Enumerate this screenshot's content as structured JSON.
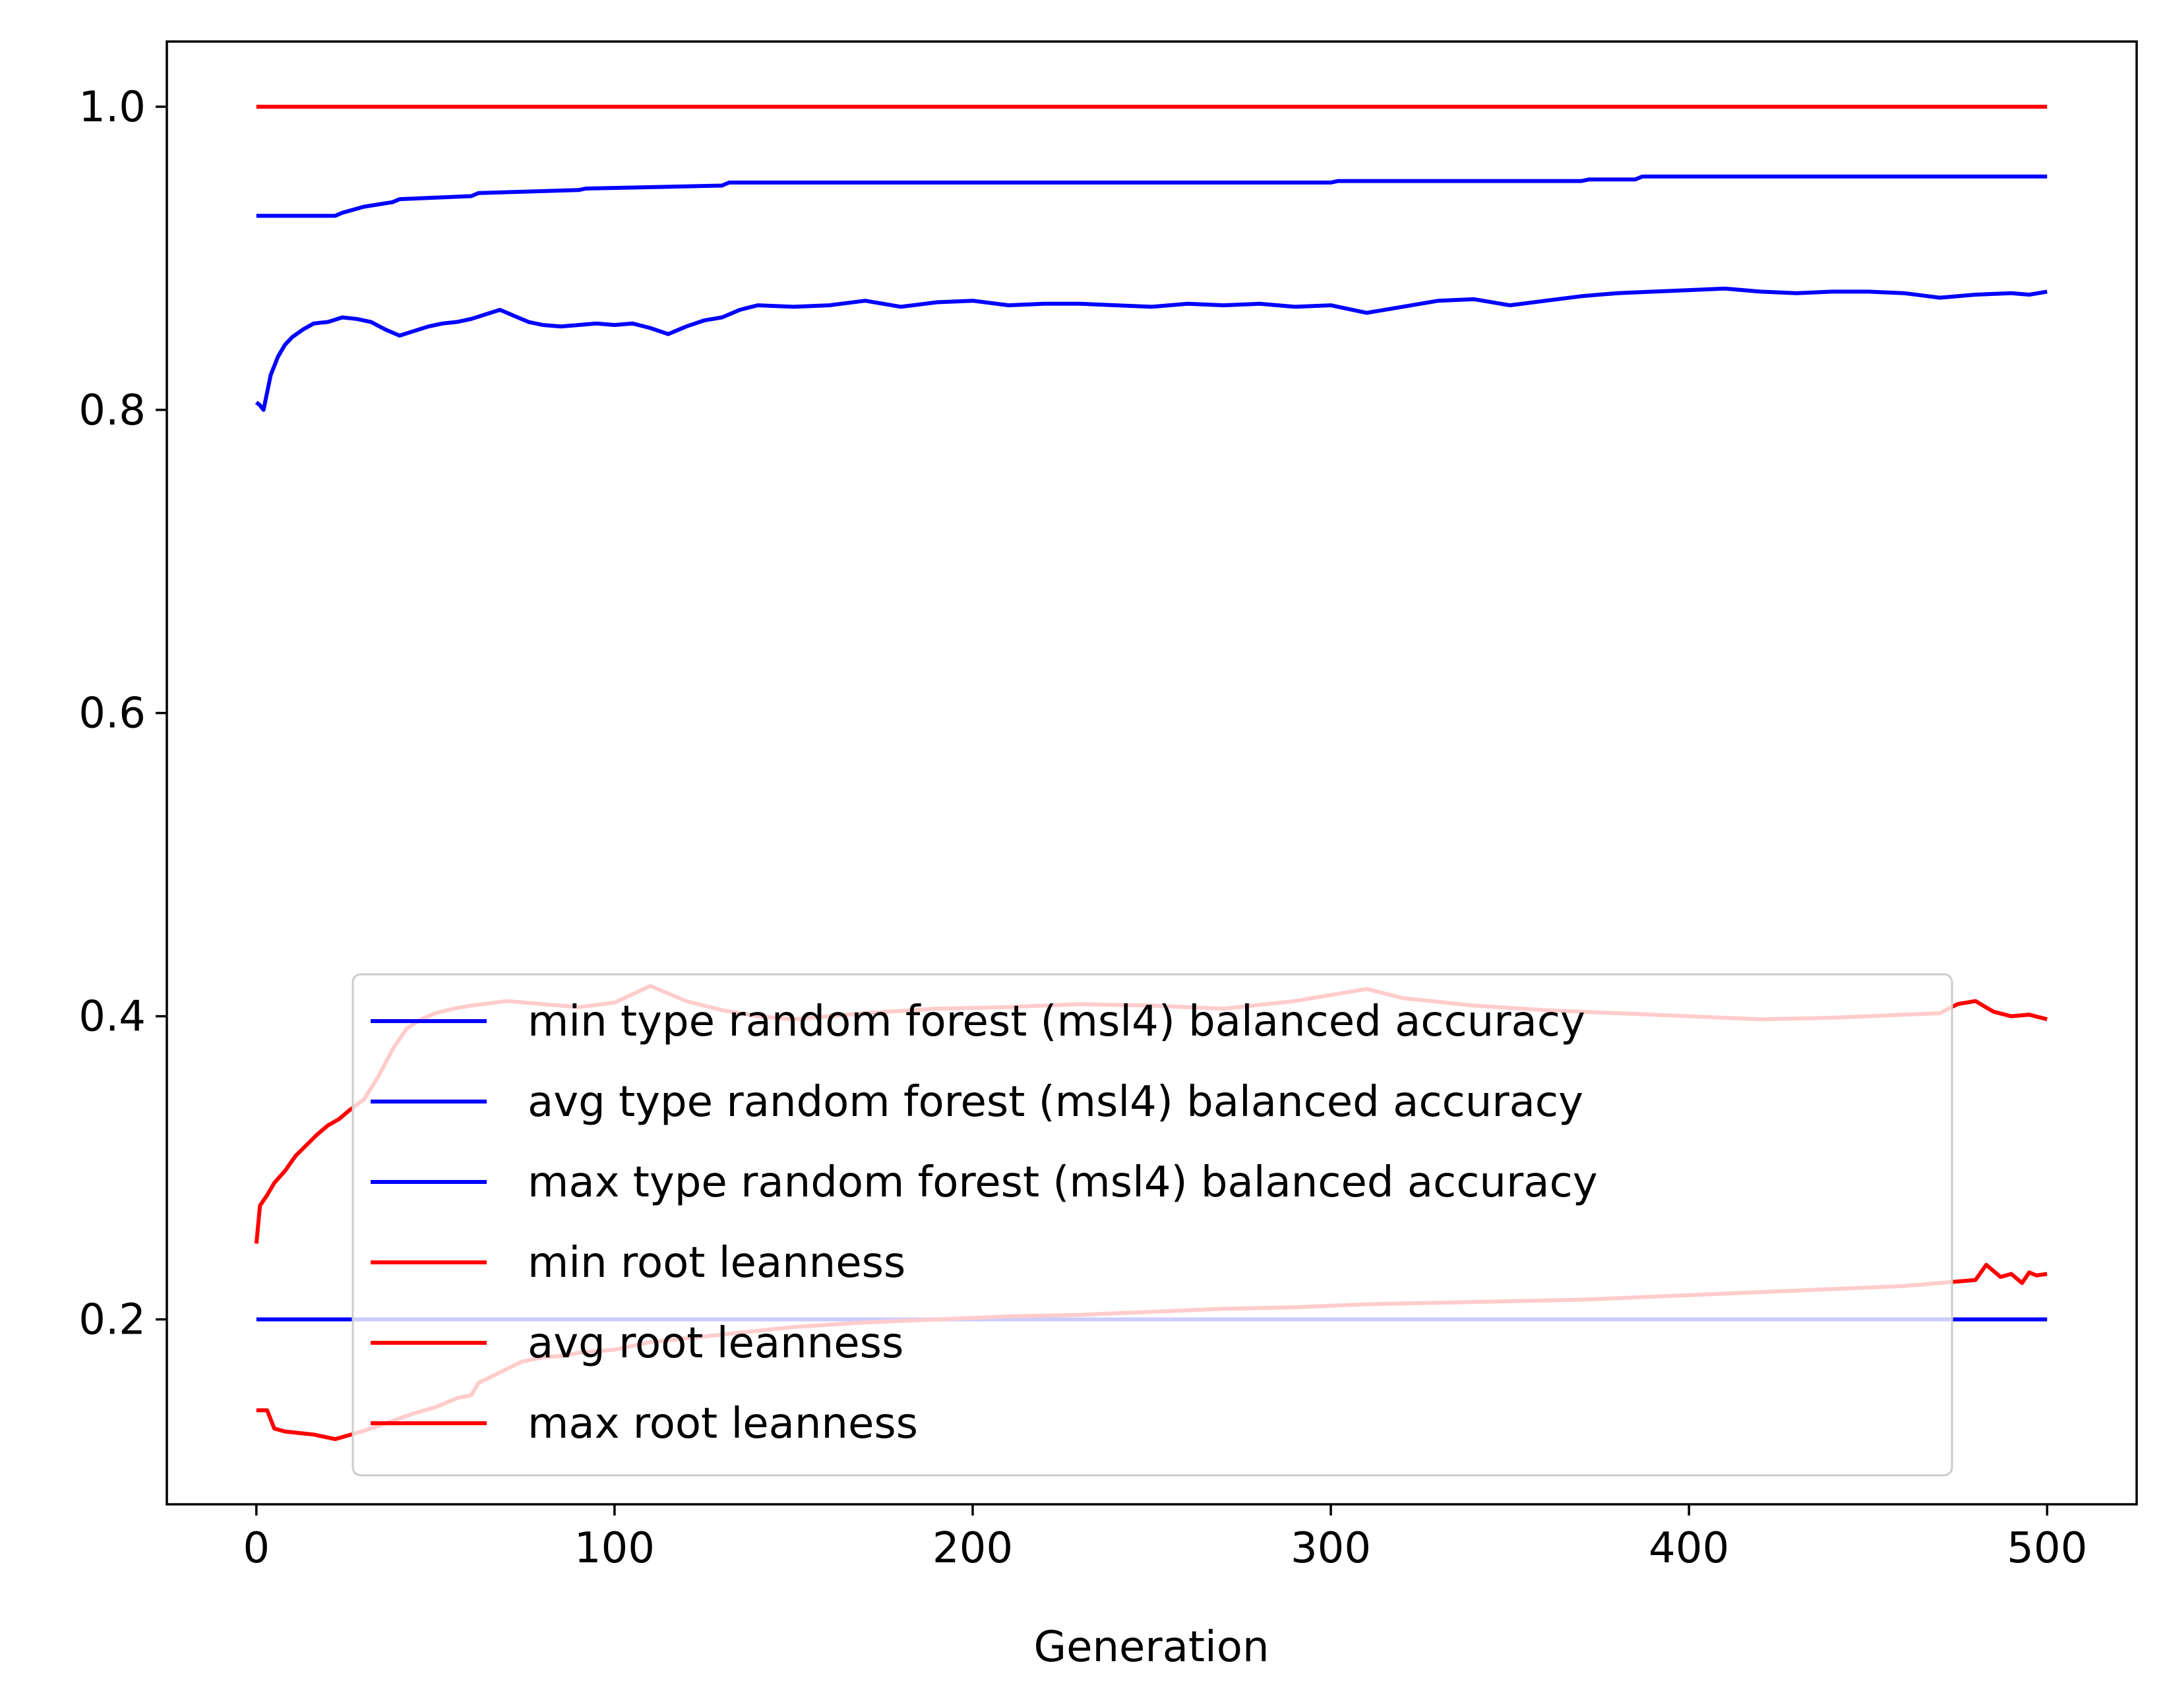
{
  "chart_data": {
    "type": "line",
    "xlabel": "Generation",
    "ylabel": "",
    "xlim": [
      -25,
      525
    ],
    "ylim": [
      0.078,
      1.043
    ],
    "xticks": [
      0,
      100,
      200,
      300,
      400,
      500
    ],
    "xtick_labels": [
      "0",
      "100",
      "200",
      "300",
      "400",
      "500"
    ],
    "yticks": [
      0.2,
      0.4,
      0.6,
      0.8,
      1.0
    ],
    "ytick_labels": [
      "0.2",
      "0.4",
      "0.6",
      "0.8",
      "1.0"
    ],
    "grid": false,
    "legend_position": "lower center",
    "series": [
      {
        "name": "min type random forest (msl4) balanced accuracy",
        "color": "#0000ff",
        "x": [
          0,
          500
        ],
        "y": [
          0.2,
          0.2
        ]
      },
      {
        "name": "avg type random forest (msl4) balanced accuracy",
        "color": "#0000ff",
        "x": [
          0,
          1,
          2,
          4,
          6,
          8,
          10,
          13,
          16,
          20,
          24,
          28,
          32,
          36,
          40,
          44,
          48,
          52,
          56,
          60,
          64,
          68,
          72,
          76,
          80,
          85,
          90,
          95,
          100,
          105,
          110,
          115,
          120,
          125,
          130,
          135,
          140,
          150,
          160,
          170,
          180,
          190,
          200,
          210,
          220,
          230,
          240,
          250,
          260,
          270,
          280,
          290,
          300,
          310,
          320,
          330,
          340,
          350,
          360,
          370,
          380,
          390,
          400,
          410,
          420,
          430,
          440,
          450,
          460,
          470,
          480,
          490,
          495,
          500
        ],
        "y": [
          0.805,
          0.803,
          0.8,
          0.823,
          0.835,
          0.843,
          0.848,
          0.853,
          0.857,
          0.858,
          0.861,
          0.86,
          0.858,
          0.853,
          0.849,
          0.852,
          0.855,
          0.857,
          0.858,
          0.86,
          0.863,
          0.866,
          0.862,
          0.858,
          0.856,
          0.855,
          0.856,
          0.857,
          0.856,
          0.857,
          0.854,
          0.85,
          0.855,
          0.859,
          0.861,
          0.866,
          0.869,
          0.868,
          0.869,
          0.872,
          0.868,
          0.871,
          0.872,
          0.869,
          0.87,
          0.87,
          0.869,
          0.868,
          0.87,
          0.869,
          0.87,
          0.868,
          0.869,
          0.864,
          0.868,
          0.872,
          0.873,
          0.869,
          0.872,
          0.875,
          0.877,
          0.878,
          0.879,
          0.88,
          0.878,
          0.877,
          0.878,
          0.878,
          0.877,
          0.874,
          0.876,
          0.877,
          0.876,
          0.878
        ]
      },
      {
        "name": "max type random forest (msl4) balanced accuracy",
        "color": "#0000ff",
        "x": [
          0,
          22,
          24,
          30,
          38,
          40,
          60,
          62,
          90,
          92,
          130,
          132,
          300,
          302,
          370,
          372,
          385,
          387,
          500
        ],
        "y": [
          0.928,
          0.928,
          0.93,
          0.934,
          0.937,
          0.939,
          0.941,
          0.943,
          0.945,
          0.946,
          0.948,
          0.95,
          0.95,
          0.951,
          0.951,
          0.952,
          0.952,
          0.954,
          0.954
        ]
      },
      {
        "name": "min root leanness",
        "color": "#ff0000",
        "x": [
          0,
          3,
          5,
          8,
          12,
          16,
          20,
          22,
          25,
          28,
          32,
          38,
          44,
          50,
          56,
          60,
          62,
          68,
          74,
          80,
          86,
          90,
          100,
          110,
          130,
          150,
          170,
          190,
          210,
          230,
          250,
          270,
          290,
          310,
          330,
          350,
          370,
          390,
          410,
          430,
          450,
          460,
          465,
          470,
          475,
          480,
          483,
          487,
          490,
          493,
          495,
          497,
          500
        ],
        "y": [
          0.14,
          0.14,
          0.128,
          0.126,
          0.125,
          0.124,
          0.122,
          0.121,
          0.123,
          0.125,
          0.128,
          0.133,
          0.138,
          0.142,
          0.148,
          0.15,
          0.158,
          0.165,
          0.172,
          0.175,
          0.176,
          0.178,
          0.18,
          0.185,
          0.19,
          0.195,
          0.198,
          0.2,
          0.202,
          0.203,
          0.205,
          0.207,
          0.208,
          0.21,
          0.211,
          0.212,
          0.213,
          0.215,
          0.217,
          0.219,
          0.221,
          0.222,
          0.223,
          0.224,
          0.225,
          0.226,
          0.236,
          0.228,
          0.23,
          0.224,
          0.231,
          0.229,
          0.23
        ]
      },
      {
        "name": "avg root leanness",
        "color": "#ff0000",
        "x": [
          0,
          1,
          3,
          5,
          8,
          11,
          14,
          17,
          20,
          23,
          26,
          30,
          34,
          38,
          42,
          46,
          50,
          55,
          60,
          70,
          80,
          90,
          100,
          110,
          115,
          120,
          130,
          140,
          150,
          170,
          190,
          210,
          230,
          250,
          270,
          290,
          300,
          310,
          320,
          340,
          360,
          380,
          400,
          420,
          440,
          460,
          470,
          475,
          480,
          485,
          490,
          495,
          500
        ],
        "y": [
          0.25,
          0.275,
          0.282,
          0.29,
          0.298,
          0.308,
          0.315,
          0.322,
          0.328,
          0.332,
          0.338,
          0.345,
          0.36,
          0.378,
          0.392,
          0.398,
          0.402,
          0.405,
          0.407,
          0.41,
          0.408,
          0.406,
          0.409,
          0.42,
          0.415,
          0.41,
          0.404,
          0.4,
          0.398,
          0.402,
          0.405,
          0.406,
          0.408,
          0.407,
          0.405,
          0.41,
          0.414,
          0.418,
          0.412,
          0.407,
          0.404,
          0.402,
          0.4,
          0.398,
          0.399,
          0.401,
          0.402,
          0.408,
          0.41,
          0.403,
          0.4,
          0.401,
          0.398
        ]
      },
      {
        "name": "max root leanness",
        "color": "#ff0000",
        "x": [
          0,
          500
        ],
        "y": [
          1.0,
          1.0
        ]
      }
    ]
  }
}
